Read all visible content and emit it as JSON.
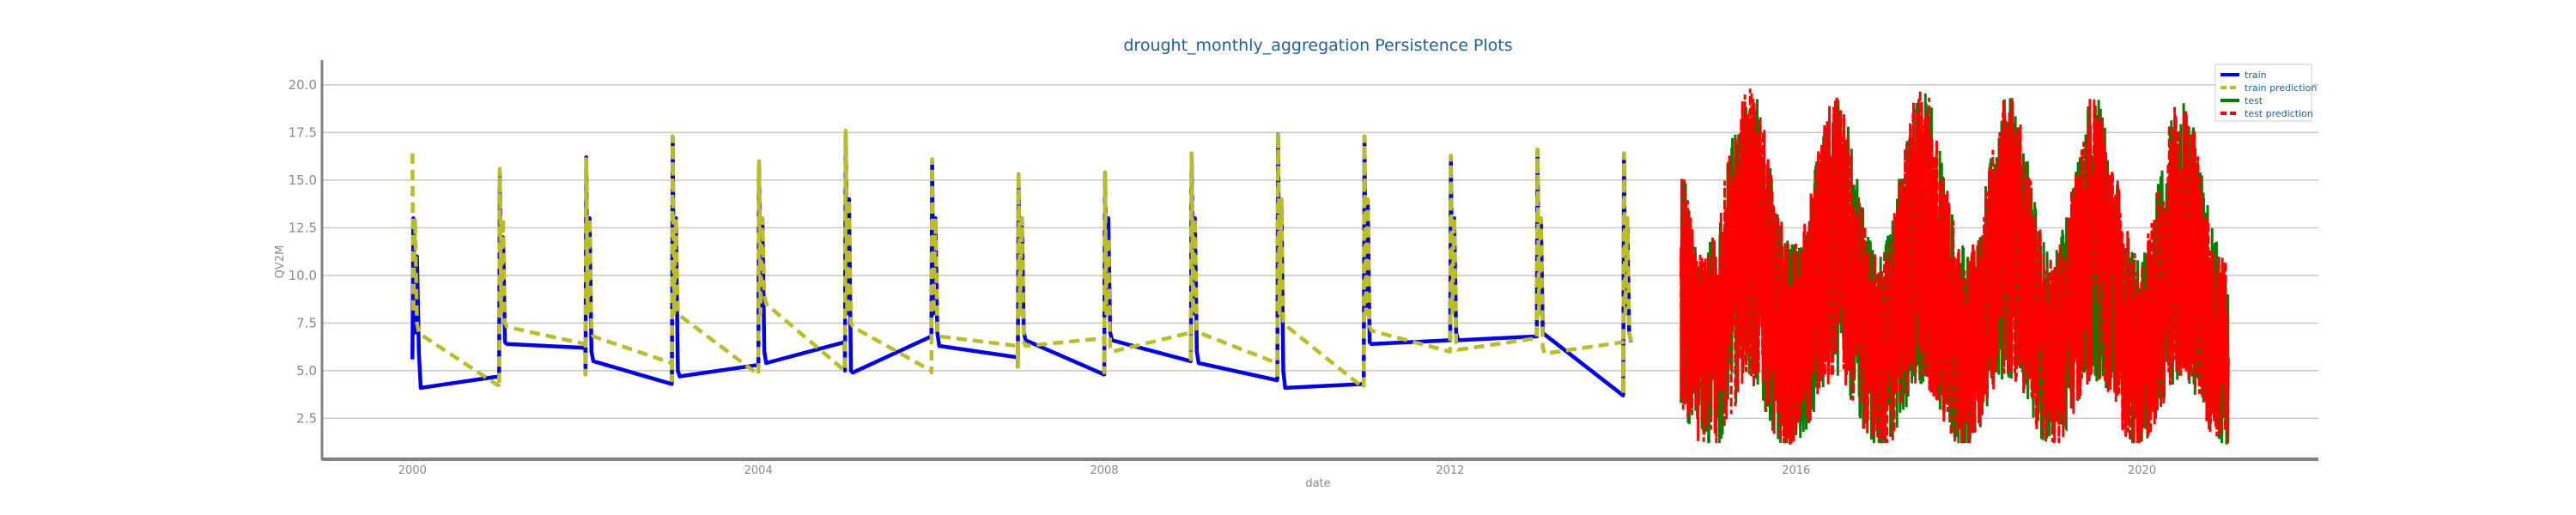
{
  "chart_data": {
    "type": "line",
    "title": "drought_monthly_aggregation Persistence Plots",
    "xlabel": "date",
    "ylabel": "QV2M",
    "xlim": [
      "1998-12-15",
      "2022-01-15"
    ],
    "ylim": [
      0.4,
      21.3
    ],
    "x_ticks": [
      "2000",
      "2004",
      "2008",
      "2012",
      "2016",
      "2020"
    ],
    "y_ticks": [
      "2.5",
      "5.0",
      "7.5",
      "10.0",
      "12.5",
      "15.0",
      "17.5",
      "20.0"
    ],
    "grid": "horizontal",
    "legend_position": "upper-right",
    "legend": [
      "train",
      "train prediction",
      "test",
      "test prediction"
    ],
    "colors": {
      "train": "#0000ee",
      "train_prediction": "#bcbd22",
      "test": "#008000",
      "test_prediction": "#ff0000",
      "title": "#1f5f9a",
      "grid": "#c8c8c8",
      "axis": "#808080"
    },
    "series": [
      {
        "name": "train",
        "x": [
          "2000-01-01",
          "2000-01-05",
          "2000-01-12",
          "2000-01-20",
          "2000-01-28",
          "2000-02-05",
          "2000-12-31",
          "2001-01-01",
          "2001-01-04",
          "2001-01-10",
          "2001-01-18",
          "2001-01-26",
          "2001-02-03",
          "2001-12-31",
          "2002-01-01",
          "2002-01-04",
          "2002-01-10",
          "2002-01-18",
          "2002-01-26",
          "2002-02-03",
          "2002-12-31",
          "2003-01-01",
          "2003-01-04",
          "2003-01-10",
          "2003-01-18",
          "2003-01-26",
          "2003-02-03",
          "2003-12-31",
          "2004-01-01",
          "2004-01-04",
          "2004-01-10",
          "2004-01-18",
          "2004-01-26",
          "2004-02-03",
          "2004-12-31",
          "2005-01-01",
          "2005-01-04",
          "2005-01-10",
          "2005-01-18",
          "2005-01-26",
          "2005-02-03",
          "2005-12-31",
          "2006-01-01",
          "2006-01-04",
          "2006-01-10",
          "2006-01-18",
          "2006-01-26",
          "2006-02-03",
          "2006-12-31",
          "2007-01-01",
          "2007-01-04",
          "2007-01-10",
          "2007-01-18",
          "2007-01-26",
          "2007-02-03",
          "2007-12-31",
          "2008-01-01",
          "2008-01-04",
          "2008-01-10",
          "2008-01-18",
          "2008-01-26",
          "2008-02-03",
          "2008-12-31",
          "2009-01-01",
          "2009-01-04",
          "2009-01-10",
          "2009-01-18",
          "2009-01-26",
          "2009-02-03",
          "2009-12-31",
          "2010-01-01",
          "2010-01-04",
          "2010-01-10",
          "2010-01-18",
          "2010-01-26",
          "2010-02-03",
          "2010-12-31",
          "2011-01-01",
          "2011-01-04",
          "2011-01-10",
          "2011-01-18",
          "2011-01-26",
          "2011-02-03",
          "2011-12-31",
          "2012-01-01",
          "2012-01-04",
          "2012-01-10",
          "2012-01-18",
          "2012-01-26",
          "2012-02-03",
          "2012-12-31",
          "2013-01-01",
          "2013-01-04",
          "2013-01-10",
          "2013-01-18",
          "2013-01-26",
          "2013-02-03",
          "2013-12-31",
          "2014-01-01",
          "2014-01-04",
          "2014-01-10",
          "2014-01-18",
          "2014-01-26",
          "2014-02-03"
        ],
        "y": [
          5.6,
          13.0,
          7.0,
          11.0,
          6.0,
          4.1,
          4.7,
          4.9,
          15.4,
          8.0,
          12.0,
          6.5,
          6.4,
          6.2,
          4.8,
          16.2,
          8.0,
          13.0,
          6.0,
          5.5,
          4.3,
          4.5,
          17.3,
          8.0,
          13.0,
          5.0,
          4.7,
          5.3,
          5.4,
          15.8,
          8.0,
          13.0,
          6.0,
          5.4,
          6.5,
          5.0,
          17.4,
          8.0,
          14.0,
          5.0,
          4.9,
          6.8,
          6.8,
          16.0,
          8.0,
          13.0,
          7.0,
          6.3,
          5.7,
          5.2,
          15.3,
          8.0,
          13.0,
          7.0,
          6.6,
          4.8,
          4.8,
          15.4,
          8.0,
          13.0,
          7.0,
          6.6,
          5.5,
          5.6,
          16.4,
          8.0,
          13.0,
          6.0,
          5.4,
          4.5,
          4.6,
          17.4,
          8.0,
          14.0,
          5.0,
          4.1,
          4.3,
          4.5,
          17.3,
          8.0,
          14.0,
          6.5,
          6.4,
          6.6,
          6.6,
          16.2,
          8.0,
          13.0,
          7.0,
          6.6,
          6.8,
          6.8,
          16.6,
          8.0,
          13.0,
          7.0,
          6.9,
          3.7,
          3.8,
          16.4,
          8.0,
          13.0,
          7.0,
          6.5
        ]
      },
      {
        "name": "train prediction",
        "x": [
          "2000-01-01",
          "2000-01-05",
          "2000-01-12",
          "2000-01-20",
          "2000-01-28",
          "2000-02-05",
          "2000-12-31",
          "2001-01-01",
          "2001-01-04",
          "2001-01-10",
          "2001-01-18",
          "2001-01-26",
          "2001-02-03",
          "2001-12-31",
          "2002-01-01",
          "2002-01-04",
          "2002-01-10",
          "2002-01-18",
          "2002-01-26",
          "2002-02-03",
          "2002-12-31",
          "2003-01-01",
          "2003-01-04",
          "2003-01-10",
          "2003-01-18",
          "2003-01-26",
          "2003-02-03",
          "2003-12-31",
          "2004-01-01",
          "2004-01-04",
          "2004-01-10",
          "2004-01-18",
          "2004-01-26",
          "2004-02-03",
          "2004-12-31",
          "2005-01-01",
          "2005-01-04",
          "2005-01-10",
          "2005-01-18",
          "2005-01-26",
          "2005-02-03",
          "2005-12-31",
          "2006-01-01",
          "2006-01-04",
          "2006-01-10",
          "2006-01-18",
          "2006-01-26",
          "2006-02-03",
          "2006-12-31",
          "2007-01-01",
          "2007-01-04",
          "2007-01-10",
          "2007-01-18",
          "2007-01-26",
          "2007-02-03",
          "2007-12-31",
          "2008-01-01",
          "2008-01-04",
          "2008-01-10",
          "2008-01-18",
          "2008-01-26",
          "2008-02-03",
          "2008-12-31",
          "2009-01-01",
          "2009-01-04",
          "2009-01-10",
          "2009-01-18",
          "2009-01-26",
          "2009-02-03",
          "2009-12-31",
          "2010-01-01",
          "2010-01-04",
          "2010-01-10",
          "2010-01-18",
          "2010-01-26",
          "2010-02-03",
          "2010-12-31",
          "2011-01-01",
          "2011-01-04",
          "2011-01-10",
          "2011-01-18",
          "2011-01-26",
          "2011-02-03",
          "2011-12-31",
          "2012-01-01",
          "2012-01-04",
          "2012-01-10",
          "2012-01-18",
          "2012-01-26",
          "2012-02-03",
          "2012-12-31",
          "2013-01-01",
          "2013-01-04",
          "2013-01-10",
          "2013-01-18",
          "2013-01-26",
          "2013-02-03",
          "2013-12-31",
          "2014-01-01",
          "2014-01-04",
          "2014-01-10",
          "2014-01-18",
          "2014-01-26",
          "2014-02-03"
        ],
        "y": [
          16.4,
          8.0,
          13.0,
          7.5,
          7.0,
          6.9,
          4.2,
          4.1,
          15.6,
          8.0,
          13.0,
          7.5,
          7.3,
          6.4,
          4.8,
          16.1,
          8.0,
          13.0,
          7.0,
          6.8,
          5.4,
          4.5,
          17.3,
          8.0,
          13.0,
          8.2,
          7.9,
          4.8,
          4.8,
          16.0,
          8.0,
          13.0,
          9.0,
          8.5,
          5.0,
          5.0,
          17.6,
          8.0,
          14.0,
          7.5,
          7.3,
          5.0,
          4.9,
          16.1,
          8.0,
          13.0,
          7.0,
          6.8,
          6.3,
          5.2,
          15.4,
          8.0,
          13.0,
          6.5,
          6.3,
          6.7,
          4.9,
          15.4,
          8.0,
          12.0,
          6.2,
          6.0,
          7.0,
          5.6,
          16.4,
          8.0,
          13.0,
          7.2,
          7.0,
          5.4,
          4.6,
          17.5,
          8.0,
          14.0,
          7.6,
          7.4,
          4.1,
          4.5,
          17.3,
          8.0,
          14.0,
          7.3,
          7.1,
          6.0,
          6.6,
          16.3,
          8.0,
          13.0,
          6.5,
          6.1,
          6.7,
          6.7,
          16.6,
          8.0,
          13.0,
          6.2,
          5.9,
          6.5,
          3.8,
          16.4,
          8.0,
          13.0,
          7.0,
          6.5
        ]
      },
      {
        "name": "test",
        "x_range": [
          "2014-09-01",
          "2020-12-31"
        ],
        "y_range": [
          1.2,
          19.8
        ],
        "seasonal_peaks": [
          {
            "x": "2015-06-15",
            "y": 19.7
          },
          {
            "x": "2016-06-15",
            "y": 18.5
          },
          {
            "x": "2017-06-15",
            "y": 19.3
          },
          {
            "x": "2018-06-15",
            "y": 18.4
          },
          {
            "x": "2019-06-15",
            "y": 18.6
          },
          {
            "x": "2020-06-15",
            "y": 18.5
          }
        ]
      },
      {
        "name": "test prediction",
        "x_range": [
          "2014-09-01",
          "2020-12-31"
        ],
        "y_range": [
          1.2,
          19.8
        ],
        "seasonal_peaks": [
          {
            "x": "2015-06-15",
            "y": 19.7
          },
          {
            "x": "2016-06-15",
            "y": 18.5
          },
          {
            "x": "2017-06-15",
            "y": 19.3
          },
          {
            "x": "2018-06-15",
            "y": 18.4
          },
          {
            "x": "2019-06-15",
            "y": 18.6
          },
          {
            "x": "2020-06-15",
            "y": 18.5
          }
        ]
      }
    ]
  }
}
